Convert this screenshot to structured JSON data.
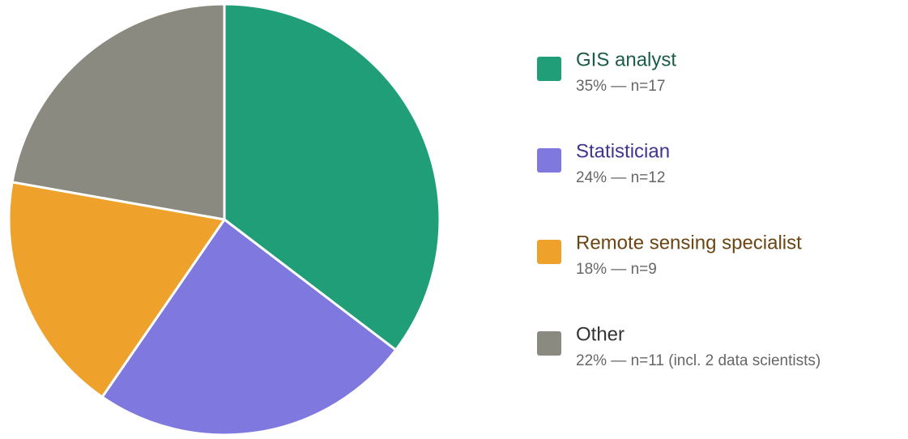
{
  "chart_data": {
    "type": "pie",
    "categories": [
      "GIS analyst",
      "Statistician",
      "Remote sensing specialist",
      "Other"
    ],
    "values": [
      35,
      24,
      18,
      22
    ],
    "value_labels": [
      "35% — n=17",
      "24% — n=12",
      "18% — n=9",
      "22% — n=11 (incl. 2 data scientists)"
    ],
    "colors": [
      "#1f9e77",
      "#7f78de",
      "#eea12b",
      "#8a8a81"
    ],
    "label_colors": [
      "#1b5c47",
      "#3e3592",
      "#6b4512",
      "#333333"
    ]
  }
}
